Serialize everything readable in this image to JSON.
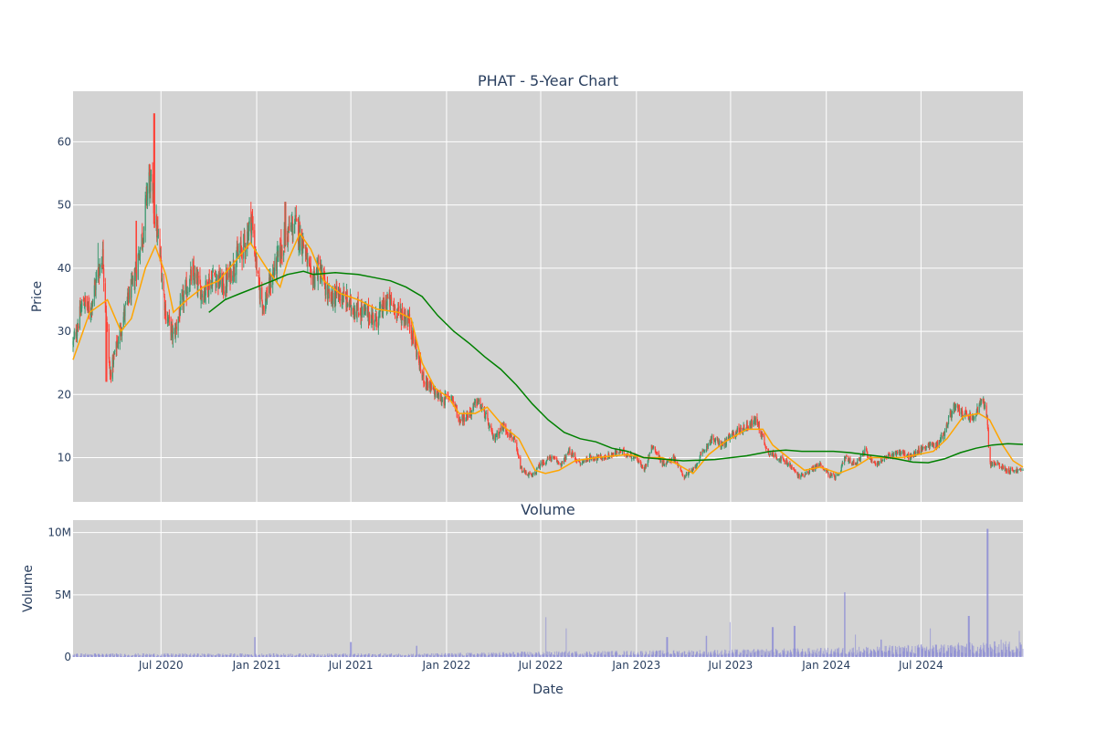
{
  "chart_data": [
    {
      "type": "candlestick",
      "title": "PHAT - 5-Year Chart",
      "xlabel": "",
      "ylabel": "Price",
      "ylim": [
        3,
        68
      ],
      "xlim": [
        "2020-01-14",
        "2025-01-13"
      ],
      "yticks": [
        10,
        20,
        30,
        40,
        50,
        60
      ],
      "grid": true,
      "legend": "none",
      "colors": {
        "increasing": "#3d9970",
        "decreasing": "#ff4136",
        "short_ma": "#ffa500",
        "long_ma": "#008000",
        "plot_bg": "#d3d3d3"
      },
      "close_path": [
        [
          "2020-01-14",
          28
        ],
        [
          "2020-02-03",
          35
        ],
        [
          "2020-02-15",
          33
        ],
        [
          "2020-03-01",
          39
        ],
        [
          "2020-03-11",
          42
        ],
        [
          "2020-03-25",
          23
        ],
        [
          "2020-04-05",
          27
        ],
        [
          "2020-04-22",
          33
        ],
        [
          "2020-05-10",
          38
        ],
        [
          "2020-05-28",
          46
        ],
        [
          "2020-06-08",
          55
        ],
        [
          "2020-06-28",
          43
        ],
        [
          "2020-07-10",
          33
        ],
        [
          "2020-07-25",
          29
        ],
        [
          "2020-08-12",
          35
        ],
        [
          "2020-08-30",
          39
        ],
        [
          "2020-09-20",
          36
        ],
        [
          "2020-10-10",
          39
        ],
        [
          "2020-10-30",
          37
        ],
        [
          "2020-11-20",
          41
        ],
        [
          "2020-12-10",
          44
        ],
        [
          "2020-12-22",
          48
        ],
        [
          "2021-01-05",
          37
        ],
        [
          "2021-01-15",
          34
        ],
        [
          "2021-02-01",
          39
        ],
        [
          "2021-02-25",
          45
        ],
        [
          "2021-03-15",
          47
        ],
        [
          "2021-04-01",
          44
        ],
        [
          "2021-04-15",
          38
        ],
        [
          "2021-05-01",
          40
        ],
        [
          "2021-05-20",
          35
        ],
        [
          "2021-06-10",
          36
        ],
        [
          "2021-07-01",
          34
        ],
        [
          "2021-07-25",
          33
        ],
        [
          "2021-08-20",
          32
        ],
        [
          "2021-09-10",
          35
        ],
        [
          "2021-10-01",
          33
        ],
        [
          "2021-10-20",
          32
        ],
        [
          "2021-11-01",
          28
        ],
        [
          "2021-11-15",
          23
        ],
        [
          "2021-12-01",
          21
        ],
        [
          "2021-12-25",
          19
        ],
        [
          "2022-01-10",
          20
        ],
        [
          "2022-01-25",
          16
        ],
        [
          "2022-02-15",
          17
        ],
        [
          "2022-03-01",
          19
        ],
        [
          "2022-03-15",
          17
        ],
        [
          "2022-04-01",
          13
        ],
        [
          "2022-04-20",
          15
        ],
        [
          "2022-05-10",
          13
        ],
        [
          "2022-05-25",
          8
        ],
        [
          "2022-06-15",
          7
        ],
        [
          "2022-07-01",
          9
        ],
        [
          "2022-07-20",
          10
        ],
        [
          "2022-08-10",
          9
        ],
        [
          "2022-08-25",
          11
        ],
        [
          "2022-09-15",
          9
        ],
        [
          "2022-10-01",
          10
        ],
        [
          "2022-11-01",
          10
        ],
        [
          "2022-12-01",
          11
        ],
        [
          "2023-01-01",
          10
        ],
        [
          "2023-01-15",
          8
        ],
        [
          "2023-02-01",
          12
        ],
        [
          "2023-02-20",
          9
        ],
        [
          "2023-03-15",
          10
        ],
        [
          "2023-04-01",
          7
        ],
        [
          "2023-04-20",
          8
        ],
        [
          "2023-05-10",
          11
        ],
        [
          "2023-05-25",
          13
        ],
        [
          "2023-06-15",
          12
        ],
        [
          "2023-07-10",
          14
        ],
        [
          "2023-08-01",
          15
        ],
        [
          "2023-08-20",
          16
        ],
        [
          "2023-09-10",
          11
        ],
        [
          "2023-10-01",
          10
        ],
        [
          "2023-10-20",
          9
        ],
        [
          "2023-11-10",
          7
        ],
        [
          "2023-12-01",
          8
        ],
        [
          "2023-12-20",
          9
        ],
        [
          "2024-01-10",
          7
        ],
        [
          "2024-01-25",
          7
        ],
        [
          "2024-02-05",
          10
        ],
        [
          "2024-02-25",
          9
        ],
        [
          "2024-03-15",
          11
        ],
        [
          "2024-04-05",
          9
        ],
        [
          "2024-04-25",
          10
        ],
        [
          "2024-05-20",
          11
        ],
        [
          "2024-06-10",
          10
        ],
        [
          "2024-06-25",
          11
        ],
        [
          "2024-07-15",
          12
        ],
        [
          "2024-08-01",
          12
        ],
        [
          "2024-08-15",
          14
        ],
        [
          "2024-09-01",
          18
        ],
        [
          "2024-09-20",
          17
        ],
        [
          "2024-10-10",
          16
        ],
        [
          "2024-10-25",
          19
        ],
        [
          "2024-11-05",
          17
        ],
        [
          "2024-11-10",
          9
        ],
        [
          "2024-11-25",
          9
        ],
        [
          "2024-12-15",
          8
        ],
        [
          "2025-01-13",
          8
        ]
      ],
      "short_ma": [
        [
          "2020-01-14",
          25.5
        ],
        [
          "2020-02-15",
          33
        ],
        [
          "2020-03-20",
          35
        ],
        [
          "2020-04-15",
          30
        ],
        [
          "2020-05-05",
          32
        ],
        [
          "2020-06-01",
          40
        ],
        [
          "2020-06-20",
          43.5
        ],
        [
          "2020-07-10",
          39
        ],
        [
          "2020-07-25",
          33
        ],
        [
          "2020-08-20",
          35
        ],
        [
          "2020-09-20",
          37
        ],
        [
          "2020-10-20",
          38
        ],
        [
          "2020-11-20",
          41
        ],
        [
          "2020-12-20",
          44
        ],
        [
          "2021-01-20",
          40
        ],
        [
          "2021-02-15",
          37
        ],
        [
          "2021-03-01",
          41
        ],
        [
          "2021-03-25",
          45.5
        ],
        [
          "2021-04-15",
          43
        ],
        [
          "2021-05-10",
          38
        ],
        [
          "2021-06-10",
          36
        ],
        [
          "2021-07-15",
          35
        ],
        [
          "2021-08-20",
          33.5
        ],
        [
          "2021-10-01",
          33
        ],
        [
          "2021-10-25",
          32
        ],
        [
          "2021-11-15",
          25
        ],
        [
          "2021-12-10",
          21
        ],
        [
          "2022-01-05",
          19.5
        ],
        [
          "2022-01-25",
          17
        ],
        [
          "2022-02-25",
          17
        ],
        [
          "2022-03-20",
          18
        ],
        [
          "2022-04-20",
          15
        ],
        [
          "2022-05-20",
          13
        ],
        [
          "2022-06-20",
          8
        ],
        [
          "2022-07-10",
          7.5
        ],
        [
          "2022-08-05",
          8
        ],
        [
          "2022-09-05",
          9.5
        ],
        [
          "2022-10-15",
          10
        ],
        [
          "2022-12-15",
          10.5
        ],
        [
          "2023-01-15",
          10
        ],
        [
          "2023-02-20",
          10
        ],
        [
          "2023-03-20",
          9
        ],
        [
          "2023-04-20",
          7.5
        ],
        [
          "2023-05-20",
          10.5
        ],
        [
          "2023-06-20",
          12.5
        ],
        [
          "2023-08-01",
          14.5
        ],
        [
          "2023-09-01",
          14.5
        ],
        [
          "2023-09-20",
          12
        ],
        [
          "2023-10-20",
          10
        ],
        [
          "2023-11-20",
          8
        ],
        [
          "2023-12-20",
          8.5
        ],
        [
          "2024-01-25",
          7.5
        ],
        [
          "2024-02-25",
          8.5
        ],
        [
          "2024-03-25",
          10
        ],
        [
          "2024-04-25",
          10
        ],
        [
          "2024-05-25",
          10
        ],
        [
          "2024-06-25",
          10.5
        ],
        [
          "2024-07-25",
          11
        ],
        [
          "2024-08-20",
          13
        ],
        [
          "2024-09-20",
          16.5
        ],
        [
          "2024-10-20",
          17
        ],
        [
          "2024-11-10",
          16
        ],
        [
          "2024-12-05",
          12
        ],
        [
          "2024-12-25",
          9.5
        ],
        [
          "2025-01-13",
          8.5
        ]
      ],
      "long_ma": [
        [
          "2020-10-01",
          33
        ],
        [
          "2020-11-01",
          35
        ],
        [
          "2020-12-01",
          36
        ],
        [
          "2021-01-01",
          37
        ],
        [
          "2021-02-01",
          38
        ],
        [
          "2021-03-01",
          39
        ],
        [
          "2021-04-01",
          39.5
        ],
        [
          "2021-04-20",
          39
        ],
        [
          "2021-06-01",
          39.3
        ],
        [
          "2021-07-15",
          39
        ],
        [
          "2021-08-15",
          38.5
        ],
        [
          "2021-09-15",
          38
        ],
        [
          "2021-10-15",
          37
        ],
        [
          "2021-11-15",
          35.5
        ],
        [
          "2021-12-15",
          32.5
        ],
        [
          "2022-01-15",
          30
        ],
        [
          "2022-02-15",
          28
        ],
        [
          "2022-03-15",
          26
        ],
        [
          "2022-04-15",
          24
        ],
        [
          "2022-05-15",
          21.5
        ],
        [
          "2022-06-15",
          18.5
        ],
        [
          "2022-07-15",
          16
        ],
        [
          "2022-08-15",
          14
        ],
        [
          "2022-09-15",
          13
        ],
        [
          "2022-10-15",
          12.5
        ],
        [
          "2022-11-15",
          11.5
        ],
        [
          "2022-12-15",
          11
        ],
        [
          "2023-01-15",
          10
        ],
        [
          "2023-02-15",
          9.8
        ],
        [
          "2023-04-01",
          9.5
        ],
        [
          "2023-06-01",
          9.7
        ],
        [
          "2023-08-01",
          10.3
        ],
        [
          "2023-09-15",
          11
        ],
        [
          "2023-10-15",
          11.2
        ],
        [
          "2023-11-15",
          11
        ],
        [
          "2023-12-15",
          11
        ],
        [
          "2024-01-15",
          11
        ],
        [
          "2024-02-15",
          10.8
        ],
        [
          "2024-03-15",
          10.5
        ],
        [
          "2024-04-15",
          10.2
        ],
        [
          "2024-05-15",
          9.8
        ],
        [
          "2024-06-15",
          9.3
        ],
        [
          "2024-07-15",
          9.2
        ],
        [
          "2024-08-15",
          9.8
        ],
        [
          "2024-09-15",
          10.8
        ],
        [
          "2024-10-15",
          11.5
        ],
        [
          "2024-11-15",
          12
        ],
        [
          "2024-12-15",
          12.2
        ],
        [
          "2025-01-13",
          12.1
        ]
      ],
      "price_spikes": [
        [
          "2020-03-01",
          44
        ],
        [
          "2020-03-18",
          22
        ],
        [
          "2020-05-15",
          47.5
        ],
        [
          "2020-06-18",
          64.5
        ],
        [
          "2020-12-20",
          50.5
        ],
        [
          "2021-02-25",
          50.5
        ]
      ]
    },
    {
      "type": "bar",
      "title": "Volume",
      "xlabel": "Date",
      "ylabel": "Volume",
      "ylim": [
        0,
        11000000
      ],
      "yticks": [
        0,
        5000000,
        10000000
      ],
      "ytick_labels": [
        "0",
        "5M",
        "10M"
      ],
      "xtick_labels": [
        "Jul 2020",
        "Jan 2021",
        "Jul 2021",
        "Jan 2022",
        "Jul 2022",
        "Jan 2023",
        "Jul 2023",
        "Jan 2024",
        "Jul 2024"
      ],
      "xtick_dates": [
        "2020-07-01",
        "2021-01-01",
        "2021-07-01",
        "2022-01-01",
        "2022-07-01",
        "2023-01-01",
        "2023-07-01",
        "2024-01-01",
        "2024-07-01"
      ],
      "color": "#7b7bd6",
      "baseline_volume": [
        [
          "2020-01-14",
          200000
        ],
        [
          "2021-12-01",
          200000
        ],
        [
          "2022-06-01",
          300000
        ],
        [
          "2023-01-01",
          350000
        ],
        [
          "2023-06-01",
          400000
        ],
        [
          "2024-01-01",
          500000
        ],
        [
          "2024-07-01",
          700000
        ],
        [
          "2025-01-13",
          900000
        ]
      ],
      "spikes": [
        [
          "2020-12-28",
          1600000
        ],
        [
          "2021-07-01",
          1200000
        ],
        [
          "2021-11-05",
          900000
        ],
        [
          "2022-07-10",
          3200000
        ],
        [
          "2022-08-20",
          2300000
        ],
        [
          "2023-03-01",
          1600000
        ],
        [
          "2023-05-15",
          1700000
        ],
        [
          "2023-07-01",
          2800000
        ],
        [
          "2023-09-20",
          2400000
        ],
        [
          "2023-11-01",
          2500000
        ],
        [
          "2024-02-05",
          5200000
        ],
        [
          "2024-02-25",
          1800000
        ],
        [
          "2024-04-15",
          1400000
        ],
        [
          "2024-07-20",
          2300000
        ],
        [
          "2024-10-01",
          3300000
        ],
        [
          "2024-11-06",
          10300000
        ],
        [
          "2024-12-01",
          1400000
        ],
        [
          "2025-01-05",
          2100000
        ]
      ]
    }
  ]
}
